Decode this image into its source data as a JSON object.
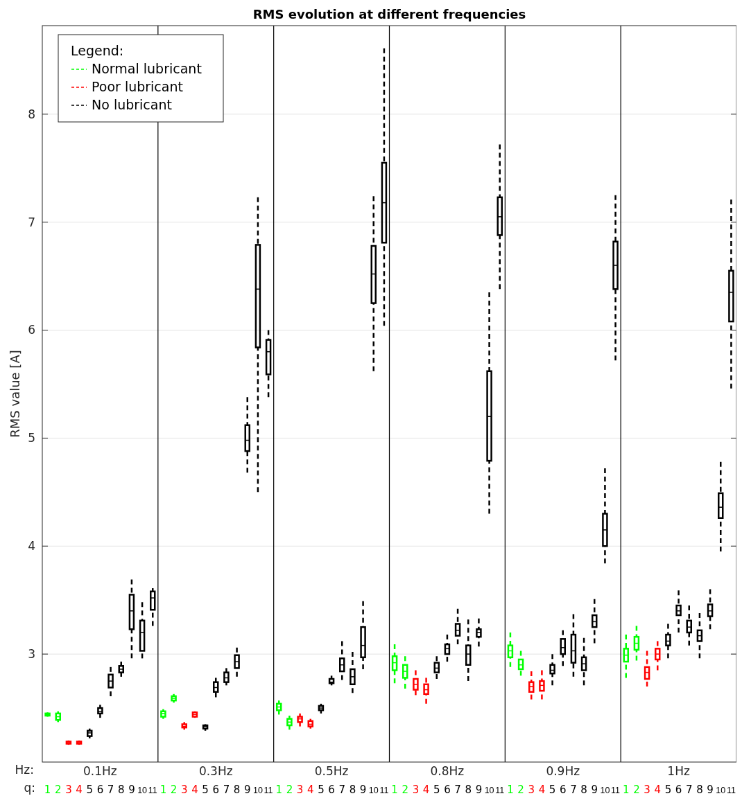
{
  "chart_data": {
    "type": "box",
    "title": "RMS evolution at different frequencies",
    "ylabel": "RMS value [A]",
    "legend_title": "Legend:",
    "legend": "top left",
    "grid": "y",
    "line_style": "dashed",
    "ylim": [
      2,
      8.82
    ],
    "yticks": [
      3,
      4,
      5,
      6,
      7,
      8
    ],
    "annotations": [
      "Hz:",
      "q:",
      "0.1Hz",
      "0.3Hz",
      "0.5Hz",
      "0.8Hz",
      "0.9Hz",
      "1Hz"
    ],
    "categories": [
      "1",
      "2",
      "3",
      "4",
      "5",
      "6",
      "7",
      "8",
      "9",
      "10",
      "11",
      "1",
      "2",
      "3",
      "4",
      "5",
      "6",
      "7",
      "8",
      "9",
      "10",
      "11",
      "1",
      "2",
      "3",
      "4",
      "5",
      "6",
      "7",
      "8",
      "9",
      "10",
      "11",
      "1",
      "2",
      "3",
      "4",
      "5",
      "6",
      "7",
      "8",
      "9",
      "10",
      "11",
      "1",
      "2",
      "3",
      "4",
      "5",
      "6",
      "7",
      "8",
      "9",
      "10",
      "11",
      "1",
      "2",
      "3",
      "4",
      "5",
      "6",
      "7",
      "8",
      "9",
      "10",
      "11"
    ],
    "series": [
      {
        "name": "Normal lubricant",
        "color": "#00ff00",
        "boxes": [
          {
            "low": 2.42,
            "q1": 2.43,
            "median": 2.44,
            "q3": 2.45,
            "high": 2.46
          },
          {
            "low": 2.37,
            "q1": 2.39,
            "median": 2.42,
            "q3": 2.45,
            "high": 2.47
          },
          null,
          null,
          null,
          null,
          null,
          null,
          null,
          null,
          null,
          {
            "low": 2.4,
            "q1": 2.42,
            "median": 2.45,
            "q3": 2.47,
            "high": 2.49
          },
          {
            "low": 2.55,
            "q1": 2.57,
            "median": 2.59,
            "q3": 2.61,
            "high": 2.63
          },
          null,
          null,
          null,
          null,
          null,
          null,
          null,
          null,
          null,
          {
            "low": 2.44,
            "q1": 2.48,
            "median": 2.51,
            "q3": 2.54,
            "high": 2.57
          },
          {
            "low": 2.3,
            "q1": 2.34,
            "median": 2.37,
            "q3": 2.4,
            "high": 2.43
          },
          null,
          null,
          null,
          null,
          null,
          null,
          null,
          null,
          null,
          {
            "low": 2.73,
            "q1": 2.85,
            "median": 2.92,
            "q3": 2.98,
            "high": 3.09
          },
          {
            "low": 2.68,
            "q1": 2.78,
            "median": 2.84,
            "q3": 2.9,
            "high": 2.98
          },
          null,
          null,
          null,
          null,
          null,
          null,
          null,
          null,
          null,
          {
            "low": 2.88,
            "q1": 2.97,
            "median": 3.03,
            "q3": 3.08,
            "high": 3.2
          },
          {
            "low": 2.8,
            "q1": 2.86,
            "median": 2.9,
            "q3": 2.95,
            "high": 3.03
          },
          null,
          null,
          null,
          null,
          null,
          null,
          null,
          null,
          null,
          {
            "low": 2.78,
            "q1": 2.93,
            "median": 2.99,
            "q3": 3.05,
            "high": 3.18
          },
          {
            "low": 2.94,
            "q1": 3.04,
            "median": 3.1,
            "q3": 3.16,
            "high": 3.26
          },
          null,
          null,
          null,
          null,
          null,
          null,
          null,
          null,
          null
        ]
      },
      {
        "name": "Poor lubricant",
        "color": "#ff0000",
        "boxes": [
          null,
          null,
          {
            "low": 2.16,
            "q1": 2.17,
            "median": 2.18,
            "q3": 2.19,
            "high": 2.2
          },
          {
            "low": 2.16,
            "q1": 2.17,
            "median": 2.18,
            "q3": 2.19,
            "high": 2.2
          },
          null,
          null,
          null,
          null,
          null,
          null,
          null,
          null,
          null,
          {
            "low": 2.3,
            "q1": 2.32,
            "median": 2.33,
            "q3": 2.35,
            "high": 2.37
          },
          {
            "low": 2.41,
            "q1": 2.42,
            "median": 2.44,
            "q3": 2.46,
            "high": 2.47
          },
          null,
          null,
          null,
          null,
          null,
          null,
          null,
          null,
          null,
          {
            "low": 2.33,
            "q1": 2.37,
            "median": 2.4,
            "q3": 2.42,
            "high": 2.45
          },
          {
            "low": 2.31,
            "q1": 2.33,
            "median": 2.35,
            "q3": 2.38,
            "high": 2.4
          },
          null,
          null,
          null,
          null,
          null,
          null,
          null,
          null,
          null,
          {
            "low": 2.62,
            "q1": 2.67,
            "median": 2.72,
            "q3": 2.77,
            "high": 2.85
          },
          {
            "low": 2.54,
            "q1": 2.63,
            "median": 2.67,
            "q3": 2.72,
            "high": 2.78
          },
          null,
          null,
          null,
          null,
          null,
          null,
          null,
          null,
          null,
          {
            "low": 2.58,
            "q1": 2.65,
            "median": 2.7,
            "q3": 2.74,
            "high": 2.84
          },
          {
            "low": 2.58,
            "q1": 2.66,
            "median": 2.71,
            "q3": 2.75,
            "high": 2.85
          },
          null,
          null,
          null,
          null,
          null,
          null,
          null,
          null,
          null,
          {
            "low": 2.7,
            "q1": 2.77,
            "median": 2.83,
            "q3": 2.88,
            "high": 3.03
          },
          {
            "low": 2.85,
            "q1": 2.95,
            "median": 3.0,
            "q3": 3.05,
            "high": 3.12
          },
          null,
          null,
          null,
          null,
          null,
          null,
          null
        ]
      },
      {
        "name": "No lubricant",
        "color": "#000000",
        "boxes": [
          null,
          null,
          null,
          null,
          {
            "low": 2.22,
            "q1": 2.24,
            "median": 2.27,
            "q3": 2.29,
            "high": 2.31
          },
          {
            "low": 2.41,
            "q1": 2.45,
            "median": 2.47,
            "q3": 2.5,
            "high": 2.53
          },
          {
            "low": 2.61,
            "q1": 2.69,
            "median": 2.75,
            "q3": 2.81,
            "high": 2.88
          },
          {
            "low": 2.79,
            "q1": 2.83,
            "median": 2.86,
            "q3": 2.89,
            "high": 2.93
          },
          {
            "low": 2.96,
            "q1": 3.23,
            "median": 3.4,
            "q3": 3.55,
            "high": 3.69
          },
          {
            "low": 2.96,
            "q1": 3.03,
            "median": 3.2,
            "q3": 3.31,
            "high": 3.48
          },
          {
            "low": 3.26,
            "q1": 3.41,
            "median": 3.52,
            "q3": 3.58,
            "high": 3.61
          },
          null,
          null,
          null,
          null,
          {
            "low": 2.29,
            "q1": 2.31,
            "median": 2.33,
            "q3": 2.34,
            "high": 2.35
          },
          {
            "low": 2.6,
            "q1": 2.65,
            "median": 2.69,
            "q3": 2.74,
            "high": 2.78
          },
          {
            "low": 2.71,
            "q1": 2.74,
            "median": 2.78,
            "q3": 2.83,
            "high": 2.87
          },
          {
            "low": 2.79,
            "q1": 2.87,
            "median": 2.93,
            "q3": 2.99,
            "high": 3.06
          },
          {
            "low": 4.68,
            "q1": 4.88,
            "median": 4.98,
            "q3": 5.12,
            "high": 5.38
          },
          {
            "low": 4.5,
            "q1": 5.84,
            "median": 6.38,
            "q3": 6.79,
            "high": 7.23
          },
          {
            "low": 5.38,
            "q1": 5.59,
            "median": 5.8,
            "q3": 5.91,
            "high": 6.0
          },
          null,
          null,
          null,
          null,
          {
            "low": 2.45,
            "q1": 2.48,
            "median": 2.5,
            "q3": 2.52,
            "high": 2.54
          },
          {
            "low": 2.71,
            "q1": 2.73,
            "median": 2.74,
            "q3": 2.77,
            "high": 2.8
          },
          {
            "low": 2.76,
            "q1": 2.84,
            "median": 2.9,
            "q3": 2.96,
            "high": 3.12
          },
          {
            "low": 2.64,
            "q1": 2.72,
            "median": 2.79,
            "q3": 2.86,
            "high": 3.02
          },
          {
            "low": 2.86,
            "q1": 2.97,
            "median": 3.08,
            "q3": 3.25,
            "high": 3.49
          },
          {
            "low": 5.62,
            "q1": 6.25,
            "median": 6.52,
            "q3": 6.78,
            "high": 7.24
          },
          {
            "low": 6.04,
            "q1": 6.81,
            "median": 7.18,
            "q3": 7.55,
            "high": 8.61
          },
          null,
          null,
          null,
          null,
          {
            "low": 2.77,
            "q1": 2.83,
            "median": 2.87,
            "q3": 2.92,
            "high": 2.98
          },
          {
            "low": 2.93,
            "q1": 3.0,
            "median": 3.05,
            "q3": 3.09,
            "high": 3.18
          },
          {
            "low": 3.09,
            "q1": 3.17,
            "median": 3.22,
            "q3": 3.28,
            "high": 3.42
          },
          {
            "low": 2.75,
            "q1": 2.9,
            "median": 3.0,
            "q3": 3.08,
            "high": 3.32
          },
          {
            "low": 3.07,
            "q1": 3.16,
            "median": 3.2,
            "q3": 3.23,
            "high": 3.33
          },
          {
            "low": 4.3,
            "q1": 4.79,
            "median": 5.2,
            "q3": 5.62,
            "high": 6.35
          },
          {
            "low": 6.38,
            "q1": 6.88,
            "median": 7.05,
            "q3": 7.23,
            "high": 7.72
          },
          null,
          null,
          null,
          null,
          {
            "low": 2.71,
            "q1": 2.82,
            "median": 2.85,
            "q3": 2.9,
            "high": 3.0
          },
          {
            "low": 2.89,
            "q1": 3.0,
            "median": 3.06,
            "q3": 3.14,
            "high": 3.22
          },
          {
            "low": 2.79,
            "q1": 2.92,
            "median": 3.03,
            "q3": 3.18,
            "high": 3.37
          },
          {
            "low": 2.71,
            "q1": 2.85,
            "median": 2.91,
            "q3": 2.97,
            "high": 3.15
          },
          {
            "low": 3.1,
            "q1": 3.25,
            "median": 3.3,
            "q3": 3.36,
            "high": 3.51
          },
          {
            "low": 3.84,
            "q1": 4.0,
            "median": 4.15,
            "q3": 4.3,
            "high": 4.72
          },
          {
            "low": 5.72,
            "q1": 6.38,
            "median": 6.6,
            "q3": 6.82,
            "high": 7.25
          },
          null,
          null,
          null,
          null,
          {
            "low": 2.96,
            "q1": 3.08,
            "median": 3.12,
            "q3": 3.18,
            "high": 3.28
          },
          {
            "low": 3.2,
            "q1": 3.36,
            "median": 3.4,
            "q3": 3.45,
            "high": 3.59
          },
          {
            "low": 3.08,
            "q1": 3.2,
            "median": 3.25,
            "q3": 3.31,
            "high": 3.45
          },
          {
            "low": 2.96,
            "q1": 3.12,
            "median": 3.17,
            "q3": 3.22,
            "high": 3.38
          },
          {
            "low": 3.23,
            "q1": 3.35,
            "median": 3.4,
            "q3": 3.46,
            "high": 3.6
          },
          {
            "low": 3.95,
            "q1": 4.26,
            "median": 4.36,
            "q3": 4.49,
            "high": 4.78
          },
          {
            "low": 5.46,
            "q1": 6.08,
            "median": 6.35,
            "q3": 6.55,
            "high": 7.21
          }
        ]
      }
    ]
  }
}
